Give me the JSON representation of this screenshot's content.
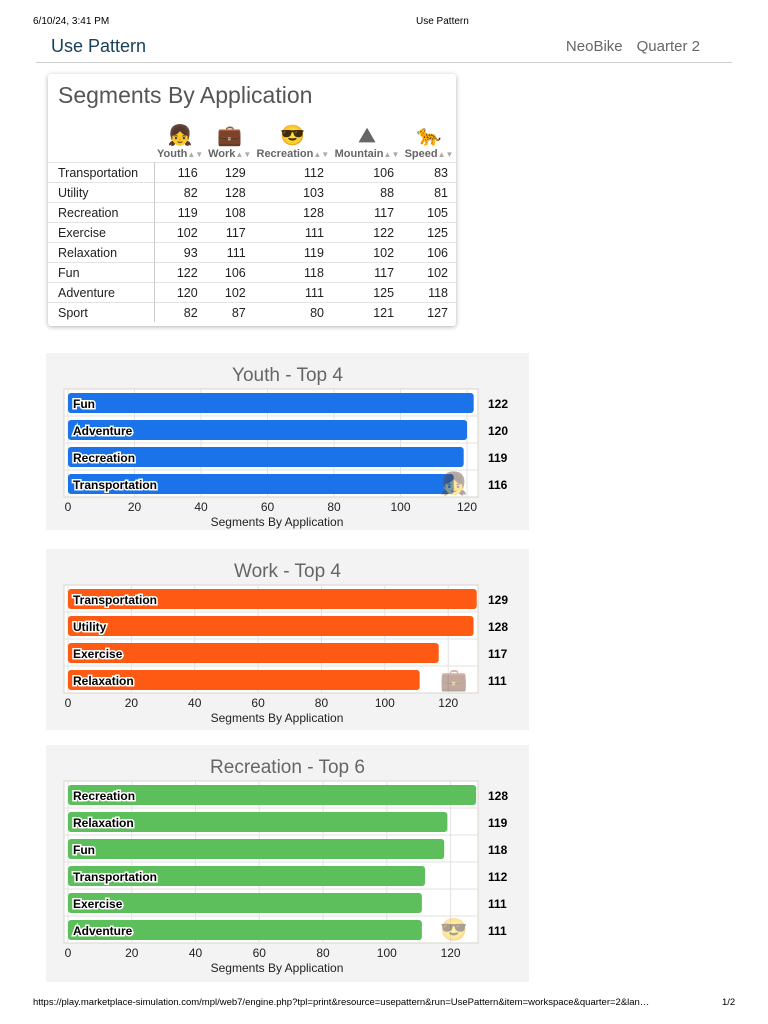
{
  "print_header": {
    "datetime": "6/10/24, 3:41 PM",
    "title": "Use Pattern"
  },
  "header": {
    "title": "Use Pattern",
    "company": "NeoBike",
    "period": "Quarter 2"
  },
  "table": {
    "title": "Segments By Application",
    "columns": [
      {
        "label": "Youth",
        "icon": "girl-icon"
      },
      {
        "label": "Work",
        "icon": "briefcase-icon"
      },
      {
        "label": "Recreation",
        "icon": "sun-sunglasses-icon"
      },
      {
        "label": "Mountain",
        "icon": "mountain-icon"
      },
      {
        "label": "Speed",
        "icon": "panther-icon"
      }
    ],
    "rows": [
      {
        "label": "Transportation",
        "values": [
          116,
          129,
          112,
          106,
          83
        ]
      },
      {
        "label": "Utility",
        "values": [
          82,
          128,
          103,
          88,
          81
        ]
      },
      {
        "label": "Recreation",
        "values": [
          119,
          108,
          128,
          117,
          105
        ]
      },
      {
        "label": "Exercise",
        "values": [
          102,
          117,
          111,
          122,
          125
        ]
      },
      {
        "label": "Relaxation",
        "values": [
          93,
          111,
          119,
          102,
          106
        ]
      },
      {
        "label": "Fun",
        "values": [
          122,
          106,
          118,
          117,
          102
        ]
      },
      {
        "label": "Adventure",
        "values": [
          120,
          102,
          111,
          125,
          118
        ]
      },
      {
        "label": "Sport",
        "values": [
          82,
          87,
          80,
          121,
          127
        ]
      }
    ]
  },
  "chart_data": [
    {
      "type": "bar",
      "title": "Youth - Top 4",
      "categories": [
        "Fun",
        "Adventure",
        "Recreation",
        "Transportation"
      ],
      "values": [
        122,
        120,
        119,
        116
      ],
      "xlabel": "Segments By Application",
      "xlim": [
        0,
        123.3
      ],
      "xticks": [
        0,
        20,
        40,
        60,
        80,
        100,
        120
      ],
      "color": "#1a73e8",
      "icon": "girl-icon",
      "grid": true
    },
    {
      "type": "bar",
      "title": "Work - Top 4",
      "categories": [
        "Transportation",
        "Utility",
        "Exercise",
        "Relaxation"
      ],
      "values": [
        129,
        128,
        117,
        111
      ],
      "xlabel": "Segments By Application",
      "xlim": [
        0,
        129.4
      ],
      "xticks": [
        0,
        20,
        40,
        60,
        80,
        100,
        120
      ],
      "color": "#ff5a14",
      "icon": "briefcase-icon",
      "grid": true
    },
    {
      "type": "bar",
      "title": "Recreation - Top 6",
      "categories": [
        "Recreation",
        "Relaxation",
        "Fun",
        "Transportation",
        "Exercise",
        "Adventure"
      ],
      "values": [
        128,
        119,
        118,
        112,
        111,
        111
      ],
      "xlabel": "Segments By Application",
      "xlim": [
        0,
        128.6
      ],
      "xticks": [
        0,
        20,
        40,
        60,
        80,
        100,
        120
      ],
      "color": "#5cbf5c",
      "icon": "sun-sunglasses-icon",
      "grid": true
    }
  ],
  "footer": {
    "url": "https://play.marketplace-simulation.com/mpl/web7/engine.php?tpl=print&resource=usepattern&run=UsePattern&item=workspace&quarter=2&lan…",
    "page": "1/2"
  }
}
